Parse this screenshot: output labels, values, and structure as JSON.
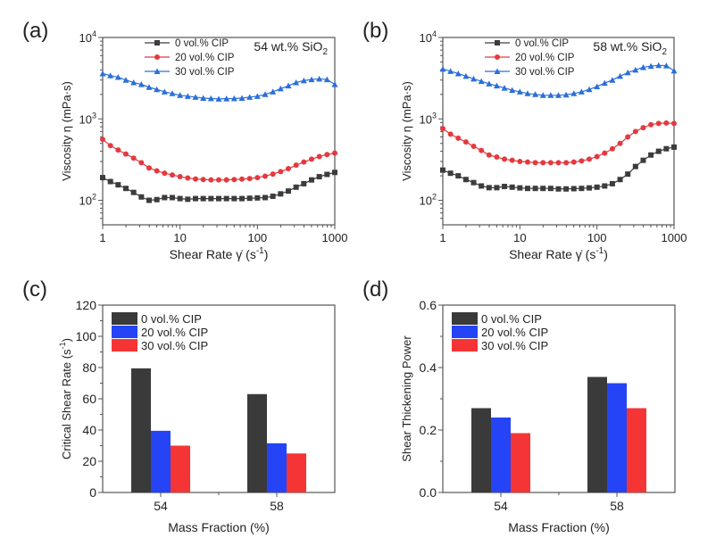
{
  "chart_data": [
    {
      "panel_label": "(a)",
      "type": "line",
      "annotation": "54 wt.% SiO",
      "annotation_sub": "2",
      "xlabel": "Shear Rate γ̇ (s",
      "xlabel_sup": "-1",
      "xlabel_end": ")",
      "ylabel": "Viscosity η (mPa·s)",
      "xscale": "log",
      "yscale": "log",
      "xlim": [
        1,
        1000
      ],
      "ylim": [
        50,
        10000
      ],
      "xticks": [
        "1",
        "10",
        "100",
        "1000"
      ],
      "yticks": [
        {
          "base": "10",
          "exp": "2"
        },
        {
          "base": "10",
          "exp": "3"
        },
        {
          "base": "10",
          "exp": "4"
        }
      ],
      "x_points_per_decade": 10,
      "series": [
        {
          "name": "0 vol.% CIP",
          "color": "#3c3c3c",
          "marker": "square",
          "values": [
            190,
            170,
            155,
            140,
            125,
            110,
            100,
            102,
            108,
            108,
            105,
            103,
            105,
            105,
            105,
            105,
            105,
            105,
            105,
            106,
            107,
            108,
            112,
            120,
            130,
            145,
            160,
            178,
            195,
            208,
            220
          ]
        },
        {
          "name": "20 vol.% CIP",
          "color": "#e3393f",
          "marker": "circle",
          "values": [
            560,
            470,
            415,
            370,
            330,
            290,
            250,
            230,
            215,
            205,
            195,
            188,
            183,
            180,
            178,
            178,
            178,
            180,
            182,
            185,
            190,
            198,
            210,
            225,
            245,
            270,
            295,
            320,
            345,
            365,
            380
          ]
        },
        {
          "name": "30 vol.% CIP",
          "color": "#2b6fd8",
          "marker": "triangle",
          "values": [
            3600,
            3400,
            3250,
            3000,
            2800,
            2650,
            2450,
            2300,
            2150,
            2050,
            1950,
            1900,
            1850,
            1800,
            1780,
            1760,
            1770,
            1780,
            1800,
            1850,
            1900,
            2000,
            2150,
            2350,
            2550,
            2800,
            2950,
            3050,
            3100,
            3050,
            2650
          ]
        }
      ]
    },
    {
      "panel_label": "(b)",
      "type": "line",
      "annotation": "58 wt.% SiO",
      "annotation_sub": "2",
      "xlabel": "Shear Rate γ̇ (s",
      "xlabel_sup": "-1",
      "xlabel_end": ")",
      "ylabel": "Viscosity η (mPa·s)",
      "xscale": "log",
      "yscale": "log",
      "xlim": [
        1,
        1000
      ],
      "ylim": [
        50,
        10000
      ],
      "xticks": [
        "1",
        "10",
        "100",
        "1000"
      ],
      "yticks": [
        {
          "base": "10",
          "exp": "2"
        },
        {
          "base": "10",
          "exp": "3"
        },
        {
          "base": "10",
          "exp": "4"
        }
      ],
      "x_points_per_decade": 10,
      "series": [
        {
          "name": "0 vol.% CIP",
          "color": "#3c3c3c",
          "marker": "square",
          "values": [
            235,
            215,
            200,
            180,
            165,
            150,
            143,
            143,
            148,
            145,
            142,
            140,
            140,
            140,
            140,
            138,
            138,
            139,
            140,
            142,
            145,
            150,
            160,
            180,
            210,
            260,
            310,
            360,
            400,
            430,
            450
          ]
        },
        {
          "name": "20 vol.% CIP",
          "color": "#e3393f",
          "marker": "circle",
          "values": [
            760,
            650,
            580,
            520,
            460,
            410,
            360,
            340,
            320,
            310,
            300,
            295,
            290,
            290,
            290,
            290,
            290,
            295,
            305,
            320,
            345,
            380,
            430,
            500,
            600,
            700,
            780,
            850,
            880,
            890,
            880
          ]
        },
        {
          "name": "30 vol.% CIP",
          "color": "#2b6fd8",
          "marker": "triangle",
          "values": [
            4100,
            3850,
            3600,
            3350,
            3100,
            2900,
            2700,
            2550,
            2400,
            2250,
            2150,
            2050,
            2000,
            1950,
            1950,
            1950,
            1980,
            2050,
            2150,
            2300,
            2500,
            2750,
            3000,
            3350,
            3700,
            4000,
            4300,
            4450,
            4550,
            4500,
            3900
          ]
        }
      ]
    },
    {
      "panel_label": "(c)",
      "type": "bar",
      "xlabel": "Mass Fraction (%)",
      "ylabel": "Critical Shear Rate (s",
      "ylabel_sup": "-1",
      "ylabel_end": ")",
      "categories": [
        "54",
        "58"
      ],
      "ylim": [
        0,
        120
      ],
      "yticks": [
        "0",
        "20",
        "40",
        "60",
        "80",
        "100",
        "120"
      ],
      "series": [
        {
          "name": "0 vol.% CIP",
          "color": "#3a3a3a",
          "values": [
            79.5,
            63
          ]
        },
        {
          "name": "20 vol.% CIP",
          "color": "#2444f5",
          "values": [
            39.5,
            31.5
          ]
        },
        {
          "name": "30 vol.% CIP",
          "color": "#f53535",
          "values": [
            30,
            25
          ]
        }
      ]
    },
    {
      "panel_label": "(d)",
      "type": "bar",
      "xlabel": "Mass Fraction (%)",
      "ylabel": "Shear Thickening Power",
      "categories": [
        "54",
        "58"
      ],
      "ylim": [
        0,
        0.6
      ],
      "yticks": [
        "0.0",
        "0.2",
        "0.4",
        "0.6"
      ],
      "series": [
        {
          "name": "0 vol.% CIP",
          "color": "#3a3a3a",
          "values": [
            0.27,
            0.37
          ]
        },
        {
          "name": "20 vol.% CIP",
          "color": "#2444f5",
          "values": [
            0.24,
            0.35
          ]
        },
        {
          "name": "30 vol.% CIP",
          "color": "#f53535",
          "values": [
            0.19,
            0.27
          ]
        }
      ]
    }
  ]
}
